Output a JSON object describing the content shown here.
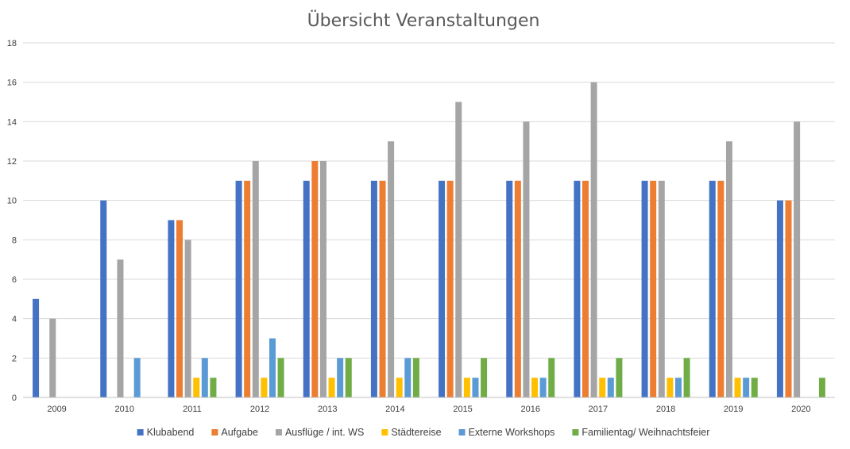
{
  "chart_data": {
    "type": "bar",
    "title": "Übersicht Veranstaltungen",
    "xlabel": "",
    "ylabel": "",
    "ylim": [
      0,
      18
    ],
    "yticks": [
      0,
      2,
      4,
      6,
      8,
      10,
      12,
      14,
      16,
      18
    ],
    "grid": true,
    "legend_position": "bottom",
    "categories": [
      "2009",
      "2010",
      "2011",
      "2012",
      "2013",
      "2014",
      "2015",
      "2016",
      "2017",
      "2018",
      "2019",
      "2020"
    ],
    "series": [
      {
        "name": "Klubabend",
        "color": "#4472c4",
        "values": [
          5,
          10,
          9,
          11,
          11,
          11,
          11,
          11,
          11,
          11,
          11,
          10
        ]
      },
      {
        "name": "Aufgabe",
        "color": "#ed7d31",
        "values": [
          0,
          0,
          9,
          11,
          12,
          11,
          11,
          11,
          11,
          11,
          11,
          10
        ]
      },
      {
        "name": "Ausflüge / int. WS",
        "color": "#a5a5a5",
        "values": [
          4,
          7,
          8,
          12,
          12,
          13,
          15,
          14,
          16,
          11,
          13,
          14
        ]
      },
      {
        "name": "Städtereise",
        "color": "#ffc000",
        "values": [
          0,
          0,
          1,
          1,
          1,
          1,
          1,
          1,
          1,
          1,
          1,
          0
        ]
      },
      {
        "name": "Externe Workshops",
        "color": "#5b9bd5",
        "values": [
          0,
          2,
          2,
          3,
          2,
          2,
          1,
          1,
          1,
          1,
          1,
          0
        ]
      },
      {
        "name": "Familientag/ Weihnachtsfeier",
        "color": "#70ad47",
        "values": [
          0,
          0,
          1,
          2,
          2,
          2,
          2,
          2,
          2,
          2,
          1,
          1
        ]
      }
    ]
  }
}
